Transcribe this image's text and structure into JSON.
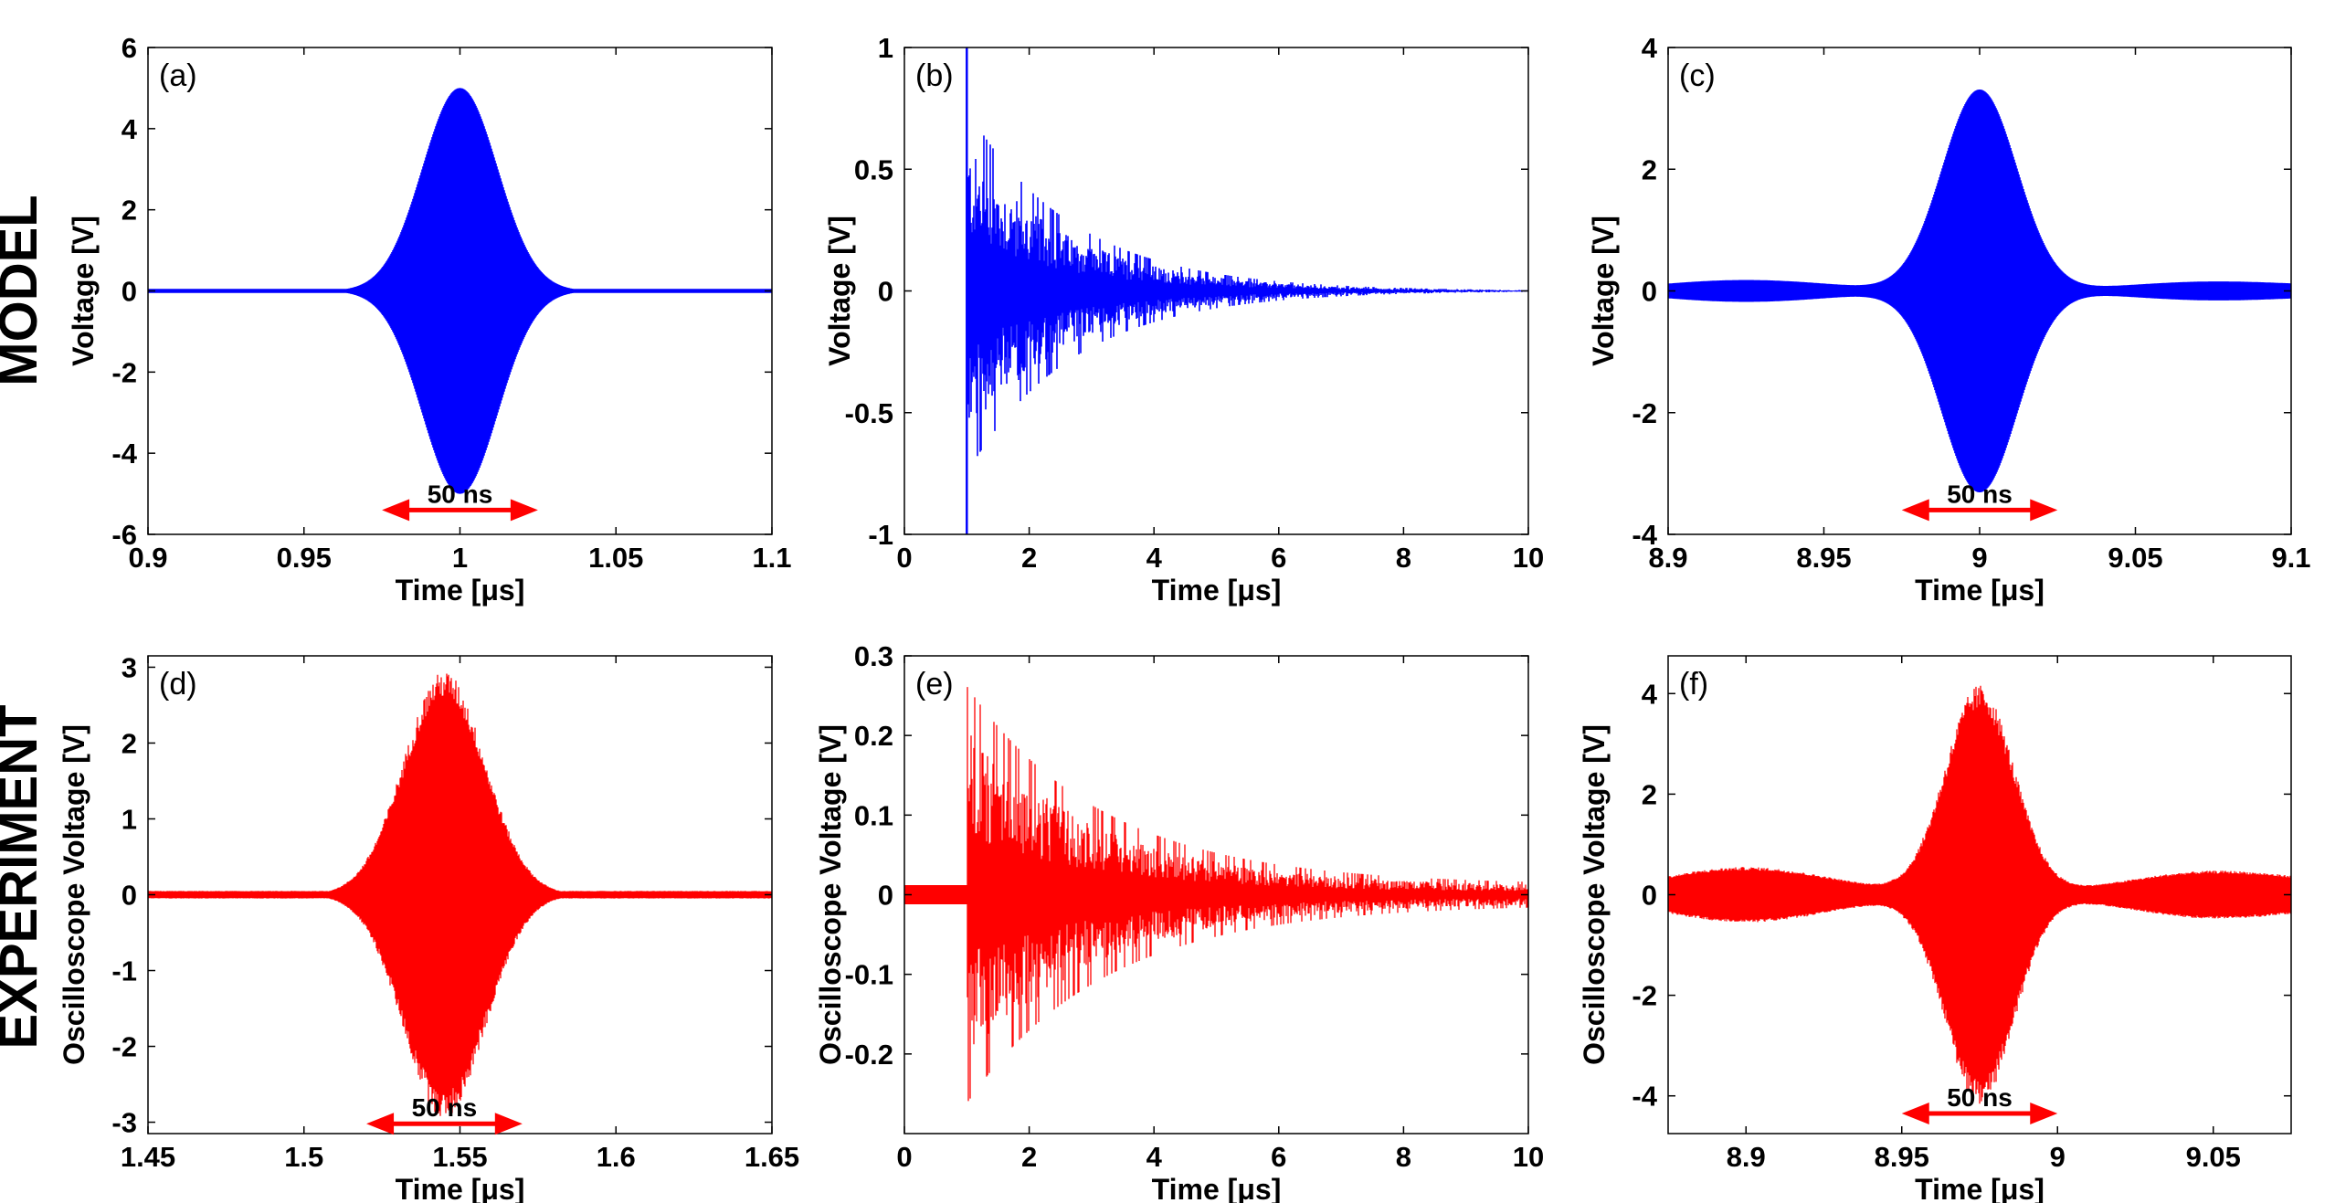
{
  "rows": [
    {
      "label": "MODEL",
      "color": "#0000ff"
    },
    {
      "label": "EXPERIMENT",
      "color": "#ff0000"
    }
  ],
  "annotation_color": "#ff0000",
  "chart_data": [
    {
      "panel": "(a)",
      "row": 0,
      "col": 0,
      "type": "line",
      "title": "",
      "xlabel": "Time [μs]",
      "ylabel": "Voltage [V]",
      "xlim": [
        0.9,
        1.1
      ],
      "ylim": [
        -6,
        6
      ],
      "xticks": [
        0.9,
        0.95,
        1,
        1.05,
        1.1
      ],
      "xtick_labels": [
        "0.9",
        "0.95",
        "1",
        "1.05",
        "1.1"
      ],
      "yticks": [
        -6,
        -4,
        -2,
        0,
        2,
        4,
        6
      ],
      "ytick_labels": [
        "-6",
        "-4",
        "-2",
        "0",
        "2",
        "4",
        "6"
      ],
      "series": [
        {
          "name": "model signal",
          "color": "#0000ff",
          "kind": "gaussian",
          "center": 1.0,
          "amplitude": 5.0,
          "width": 0.012,
          "baseline": 0.05
        }
      ],
      "bar": {
        "text": "50 ns",
        "x0": 0.975,
        "x1": 1.025,
        "y": -5.4
      }
    },
    {
      "panel": "(b)",
      "row": 0,
      "col": 1,
      "type": "line",
      "title": "",
      "xlabel": "Time [μs]",
      "ylabel": "Voltage [V]",
      "xlim": [
        0,
        10
      ],
      "ylim": [
        -1,
        1
      ],
      "xticks": [
        0,
        2,
        4,
        6,
        8,
        10
      ],
      "xtick_labels": [
        "0",
        "2",
        "4",
        "6",
        "8",
        "10"
      ],
      "yticks": [
        -1,
        -0.5,
        0,
        0.5,
        1
      ],
      "ytick_labels": [
        "-1",
        "-0.5",
        "0",
        "0.5",
        "1"
      ],
      "series": [
        {
          "name": "model reverberation",
          "color": "#0000ff",
          "kind": "decay",
          "onset": 1.0,
          "amplitude": 0.75,
          "decay_time": 1.7,
          "spike": true
        }
      ]
    },
    {
      "panel": "(c)",
      "row": 0,
      "col": 2,
      "type": "line",
      "title": "",
      "xlabel": "Time [μs]",
      "ylabel": "Voltage [V]",
      "xlim": [
        8.9,
        9.1
      ],
      "ylim": [
        -4,
        4
      ],
      "xticks": [
        8.9,
        8.95,
        9,
        9.05,
        9.1
      ],
      "xtick_labels": [
        "8.9",
        "8.95",
        "9",
        "9.05",
        "9.1"
      ],
      "yticks": [
        -4,
        -2,
        0,
        2,
        4
      ],
      "ytick_labels": [
        "-4",
        "-2",
        "0",
        "2",
        "4"
      ],
      "series": [
        {
          "name": "model refocused signal",
          "color": "#0000ff",
          "kind": "gaussian",
          "center": 9.0,
          "amplitude": 3.3,
          "width": 0.012,
          "side_lobe": 0.18
        }
      ],
      "bar": {
        "text": "50 ns",
        "x0": 8.975,
        "x1": 9.025,
        "y": -3.6
      }
    },
    {
      "panel": "(d)",
      "row": 1,
      "col": 0,
      "type": "line",
      "title": "",
      "xlabel": "Time [μs]",
      "ylabel": "Oscilloscope Voltage [V]",
      "xlim": [
        1.45,
        1.65
      ],
      "ylim": [
        -3.15,
        3.15
      ],
      "xticks": [
        1.45,
        1.5,
        1.55,
        1.6,
        1.65
      ],
      "xtick_labels": [
        "1.45",
        "1.5",
        "1.55",
        "1.6",
        "1.65"
      ],
      "yticks": [
        -3,
        -2,
        -1,
        0,
        1,
        2,
        3
      ],
      "ytick_labels": [
        "-3",
        "-2",
        "-1",
        "0",
        "1",
        "2",
        "3"
      ],
      "series": [
        {
          "name": "measured signal",
          "color": "#ff0000",
          "kind": "gaussian",
          "center": 1.545,
          "amplitude": 2.95,
          "width": 0.013,
          "baseline": 0.05
        }
      ],
      "bar": {
        "text": "50 ns",
        "x0": 1.52,
        "x1": 1.57,
        "y": -3.02
      }
    },
    {
      "panel": "(e)",
      "row": 1,
      "col": 1,
      "type": "line",
      "title": "",
      "xlabel": "Time [μs]",
      "ylabel": "Oscilloscope Voltage [V]",
      "xlim": [
        0,
        10
      ],
      "ylim": [
        -0.3,
        0.3
      ],
      "xticks": [
        0,
        2,
        4,
        6,
        8,
        10
      ],
      "xtick_labels": [
        "0",
        "2",
        "4",
        "6",
        "8",
        "10"
      ],
      "yticks": [
        -0.2,
        -0.1,
        0,
        0.1,
        0.2,
        0.3
      ],
      "ytick_labels": [
        "-0.2",
        "-0.1",
        "0",
        "0.1",
        "0.2",
        "0.3"
      ],
      "series": [
        {
          "name": "measured reverberation",
          "color": "#ff0000",
          "kind": "decay",
          "onset": 1.0,
          "amplitude": 0.25,
          "decay_time": 2.2,
          "noise": 0.012
        }
      ]
    },
    {
      "panel": "(f)",
      "row": 1,
      "col": 2,
      "type": "line",
      "title": "",
      "xlabel": "Time [μs]",
      "ylabel": "Oscilloscope Voltage [V]",
      "xlim": [
        8.875,
        9.075
      ],
      "ylim": [
        -4.75,
        4.75
      ],
      "xticks": [
        8.9,
        8.95,
        9,
        9.05
      ],
      "xtick_labels": [
        "8.9",
        "8.95",
        "9",
        "9.05"
      ],
      "yticks": [
        -4,
        -2,
        0,
        2,
        4
      ],
      "ytick_labels": [
        "-4",
        "-2",
        "0",
        "2",
        "4"
      ],
      "series": [
        {
          "name": "measured refocused signal",
          "color": "#ff0000",
          "kind": "gaussian",
          "center": 8.975,
          "amplitude": 4.15,
          "width": 0.011,
          "side_lobe": 0.55
        }
      ],
      "bar": {
        "text": "50 ns",
        "x0": 8.95,
        "x1": 9.0,
        "y": -4.35
      }
    }
  ]
}
